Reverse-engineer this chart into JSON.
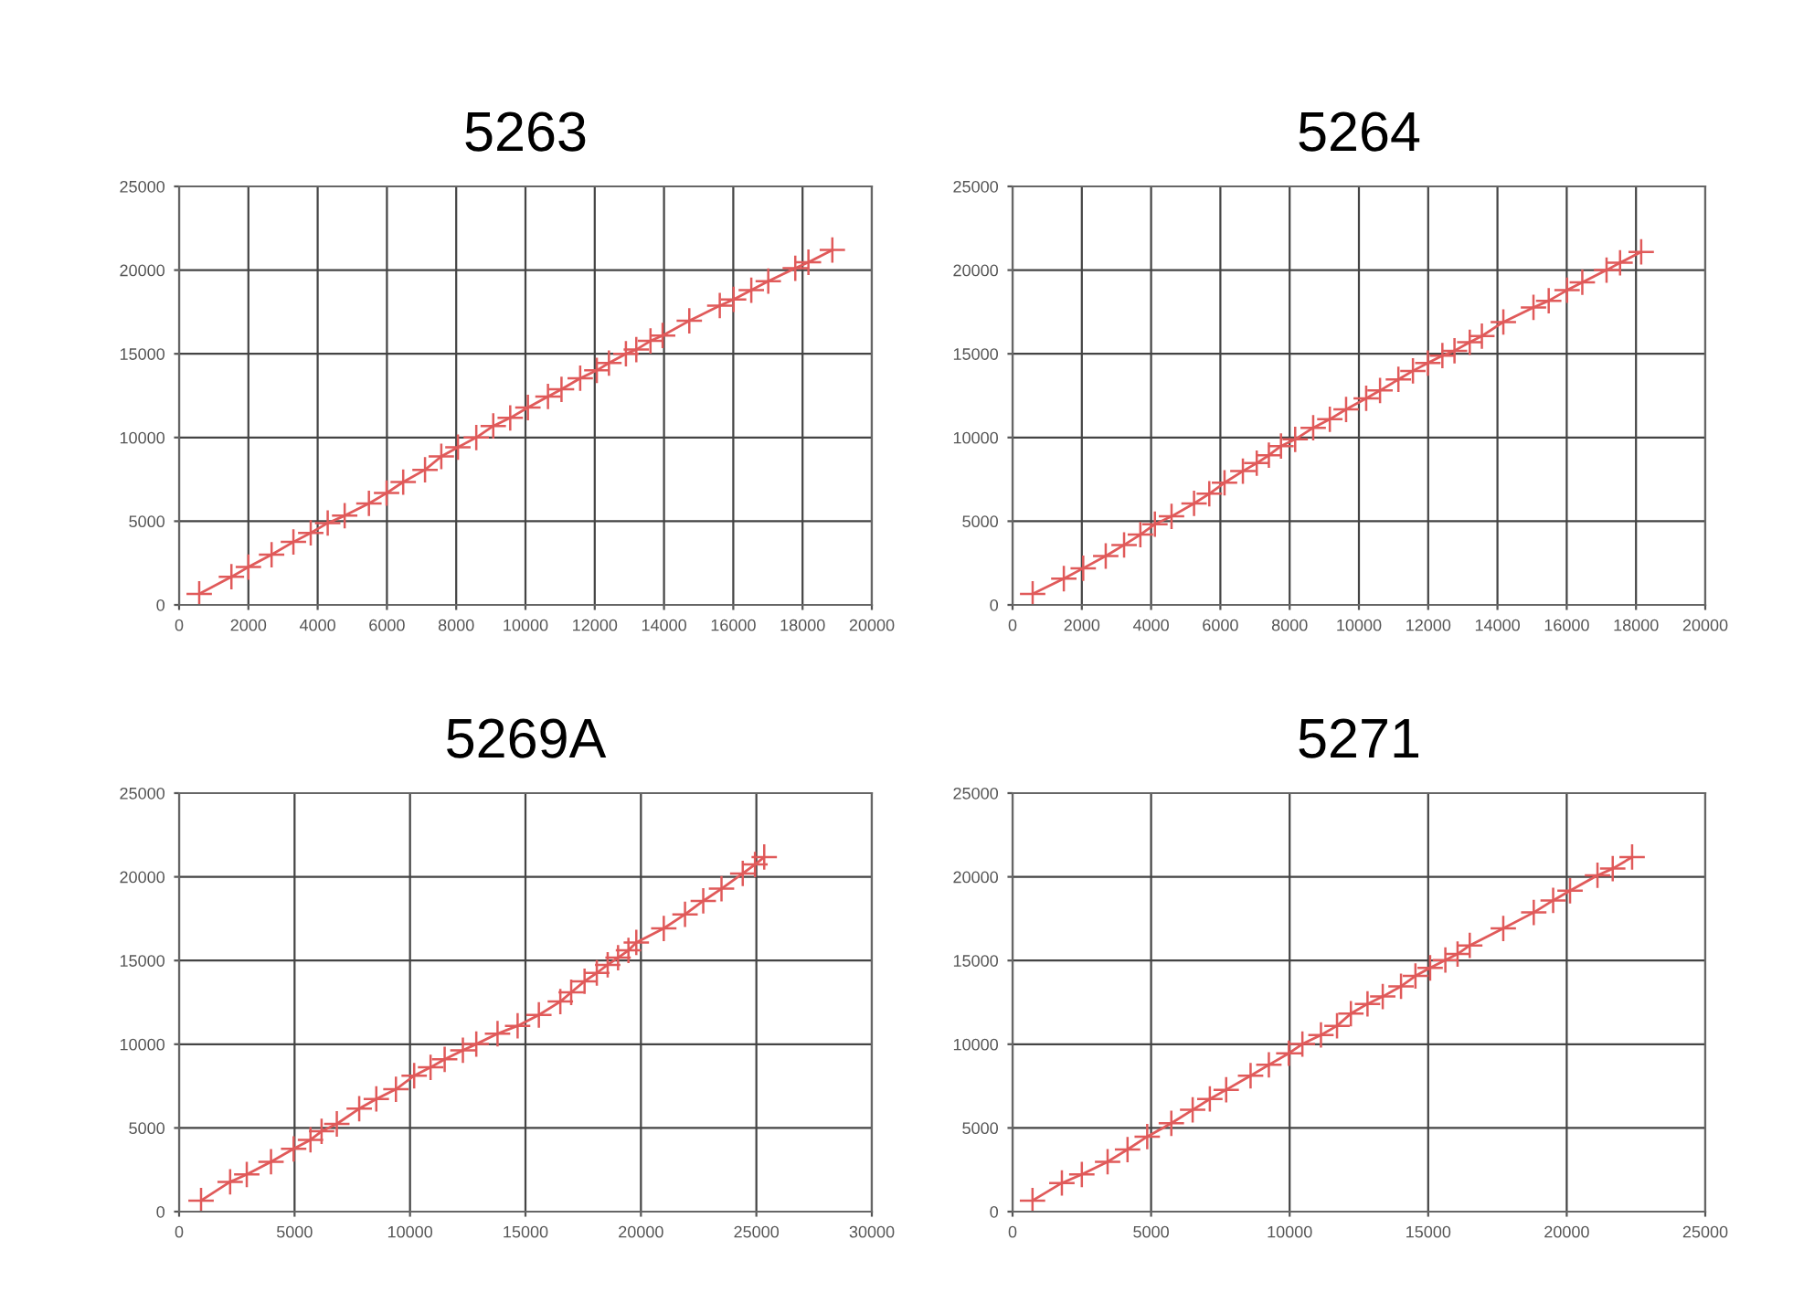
{
  "chart_data": [
    {
      "type": "line",
      "title": "5263",
      "marker": "cross",
      "grid": true,
      "xlim": [
        0,
        20000
      ],
      "xticks": [
        0,
        2000,
        4000,
        6000,
        8000,
        10000,
        12000,
        14000,
        16000,
        18000,
        20000
      ],
      "ylim": [
        0,
        25000
      ],
      "yticks": [
        0,
        5000,
        10000,
        15000,
        20000,
        25000
      ],
      "series": [
        {
          "color": "#e05a5a",
          "x": [
            580,
            1510,
            2000,
            2670,
            3300,
            3800,
            4290,
            4780,
            5480,
            5990,
            6470,
            7100,
            7570,
            8050,
            8580,
            9070,
            9560,
            10070,
            10650,
            11040,
            11580,
            12060,
            12410,
            12900,
            13200,
            13610,
            13960,
            14730,
            15610,
            16010,
            16520,
            17010,
            17790,
            18170,
            18860
          ],
          "values": [
            660,
            1680,
            2260,
            3000,
            3760,
            4300,
            4890,
            5330,
            6060,
            6680,
            7340,
            8070,
            8870,
            9420,
            10000,
            10690,
            11170,
            11790,
            12450,
            12880,
            13540,
            14010,
            14450,
            15000,
            15250,
            15770,
            16090,
            16970,
            17880,
            18250,
            18800,
            19340,
            20110,
            20470,
            21200
          ]
        }
      ]
    },
    {
      "type": "line",
      "title": "5264",
      "marker": "cross",
      "grid": true,
      "xlim": [
        0,
        20000
      ],
      "xticks": [
        0,
        2000,
        4000,
        6000,
        8000,
        10000,
        12000,
        14000,
        16000,
        18000,
        20000
      ],
      "ylim": [
        0,
        25000
      ],
      "yticks": [
        0,
        5000,
        10000,
        15000,
        20000,
        25000
      ],
      "series": [
        {
          "color": "#e05a5a",
          "x": [
            580,
            1480,
            2040,
            2690,
            3220,
            3690,
            4110,
            4590,
            5240,
            5680,
            6120,
            6650,
            7050,
            7400,
            7750,
            8160,
            8680,
            9160,
            9630,
            10210,
            10610,
            11140,
            11560,
            11990,
            12410,
            12760,
            13200,
            13550,
            14170,
            15040,
            15480,
            16010,
            16450,
            17150,
            17540,
            18150
          ],
          "values": [
            660,
            1570,
            2190,
            2920,
            3580,
            4200,
            4820,
            5290,
            6060,
            6640,
            7300,
            7990,
            8470,
            8940,
            9490,
            9890,
            10580,
            11090,
            11680,
            12340,
            12810,
            13470,
            13980,
            14450,
            14890,
            15180,
            15690,
            16060,
            16900,
            17770,
            18170,
            18800,
            19270,
            20000,
            20440,
            21090
          ]
        }
      ]
    },
    {
      "type": "line",
      "title": "5269A",
      "marker": "cross",
      "grid": true,
      "xlim": [
        0,
        30000
      ],
      "xticks": [
        0,
        5000,
        10000,
        15000,
        20000,
        25000,
        30000
      ],
      "ylim": [
        0,
        25000
      ],
      "yticks": [
        0,
        5000,
        10000,
        15000,
        20000,
        25000
      ],
      "series": [
        {
          "color": "#e05a5a",
          "x": [
            950,
            2210,
            2930,
            3980,
            4960,
            5690,
            6170,
            6830,
            7800,
            8540,
            9390,
            10180,
            10890,
            11500,
            12290,
            12870,
            13790,
            14660,
            15580,
            16510,
            16980,
            17560,
            18090,
            18560,
            19010,
            19460,
            19800,
            20990,
            21910,
            22700,
            23490,
            24410,
            24940,
            25340
          ],
          "values": [
            660,
            1780,
            2220,
            2980,
            3750,
            4290,
            4800,
            5240,
            6150,
            6730,
            7310,
            8120,
            8620,
            9100,
            9640,
            10010,
            10630,
            11100,
            11750,
            12550,
            13100,
            13760,
            14260,
            14740,
            15170,
            15610,
            16080,
            16920,
            17760,
            18560,
            19290,
            20200,
            20740,
            21180
          ]
        }
      ]
    },
    {
      "type": "line",
      "title": "5271",
      "marker": "cross",
      "grid": true,
      "xlim": [
        0,
        25000
      ],
      "xticks": [
        0,
        5000,
        10000,
        15000,
        20000,
        25000
      ],
      "ylim": [
        0,
        25000
      ],
      "yticks": [
        0,
        5000,
        10000,
        15000,
        20000,
        25000
      ],
      "series": [
        {
          "color": "#e05a5a",
          "x": [
            720,
            1780,
            2500,
            3430,
            4150,
            4860,
            5730,
            6500,
            7120,
            7710,
            8590,
            9250,
            9970,
            10460,
            11130,
            11710,
            12210,
            12810,
            13360,
            14020,
            14540,
            15070,
            15620,
            16060,
            16500,
            17710,
            18810,
            19510,
            20120,
            21110,
            21660,
            22360
          ],
          "values": [
            660,
            1710,
            2220,
            2980,
            3710,
            4480,
            5280,
            6080,
            6730,
            7280,
            8120,
            8770,
            9460,
            10010,
            10550,
            11100,
            11830,
            12410,
            12850,
            13460,
            14080,
            14560,
            15030,
            15390,
            15900,
            16920,
            17870,
            18590,
            19170,
            20090,
            20490,
            21180
          ]
        }
      ]
    }
  ]
}
